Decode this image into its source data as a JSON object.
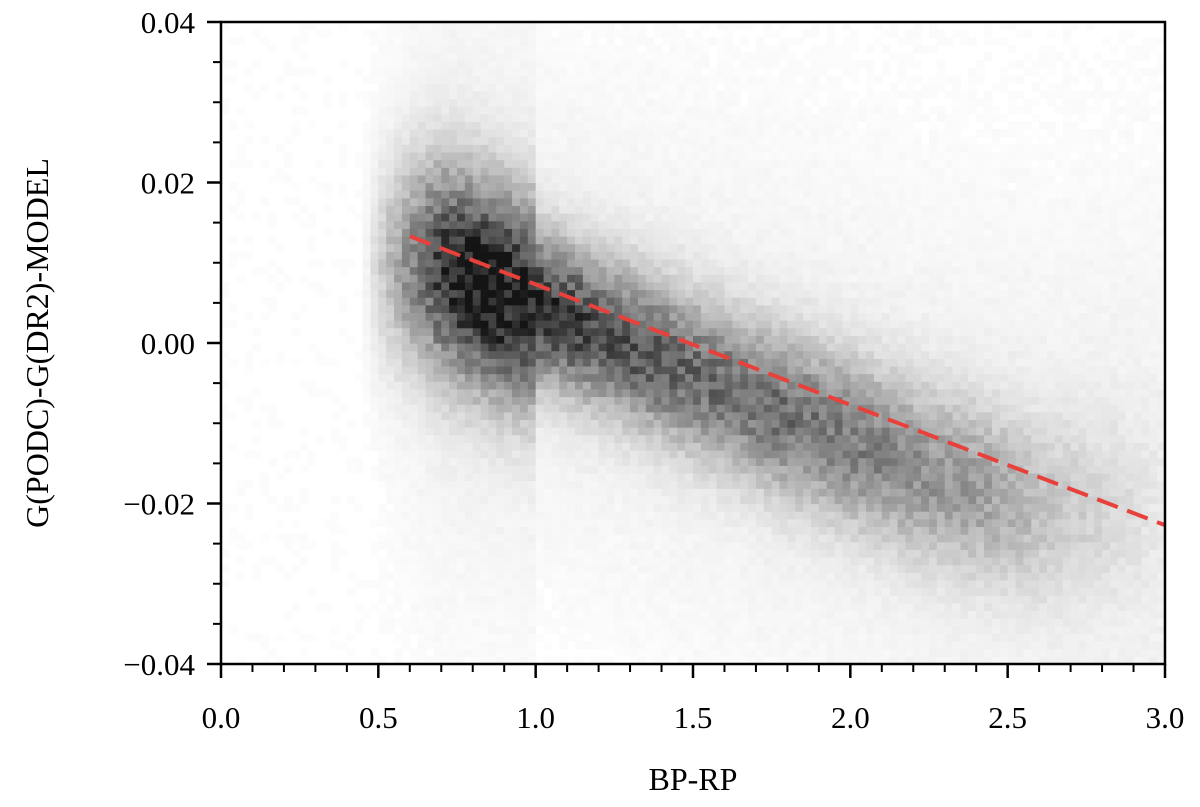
{
  "chart_data": {
    "type": "heatmap",
    "title": "",
    "xlabel": "BP-RP",
    "ylabel": "G(PODC)-G(DR2)-MODEL",
    "xlim": [
      0.0,
      3.0
    ],
    "ylim": [
      -0.04,
      0.04
    ],
    "x_ticks": [
      "0.0",
      "0.5",
      "1.0",
      "1.5",
      "2.0",
      "2.5",
      "3.0"
    ],
    "y_ticks": [
      "0.04",
      "0.02",
      "0.00",
      "−0.02",
      "−0.04"
    ],
    "colormap": "greys",
    "density_ridge": {
      "x": [
        0.65,
        0.75,
        0.85,
        0.95,
        1.05,
        1.2,
        1.4,
        1.6,
        1.8,
        2.0,
        2.2,
        2.4,
        2.6
      ],
      "y": [
        0.01,
        0.0085,
        0.007,
        0.0055,
        0.004,
        0.0015,
        -0.002,
        -0.0055,
        -0.009,
        -0.012,
        -0.0155,
        -0.018,
        -0.0205
      ],
      "peak_density": [
        0.75,
        0.9,
        1.0,
        0.9,
        0.8,
        0.7,
        0.62,
        0.55,
        0.55,
        0.5,
        0.42,
        0.35,
        0.22
      ]
    },
    "fit_line": {
      "style": "dashed",
      "color": "#e8403a",
      "x": [
        0.6,
        3.0
      ],
      "y": [
        0.0133,
        -0.0227
      ]
    }
  }
}
